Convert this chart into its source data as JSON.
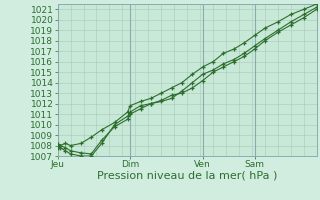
{
  "bg_color": "#d0ede0",
  "plot_bg": "#c8e8d8",
  "grid_color": "#a8c8b8",
  "line_color": "#2d6e2d",
  "xlabel": "Pression niveau de la mer( hPa )",
  "xlabel_fontsize": 8,
  "tick_fontsize": 6.5,
  "ylim": [
    1007,
    1021.5
  ],
  "yticks": [
    1007,
    1008,
    1009,
    1010,
    1011,
    1012,
    1013,
    1014,
    1015,
    1016,
    1017,
    1018,
    1019,
    1020,
    1021
  ],
  "xtick_labels": [
    "Jeu",
    "Dim",
    "Ven",
    "Sam"
  ],
  "xtick_positions": [
    0.0,
    0.28,
    0.56,
    0.76
  ],
  "xlim": [
    0.0,
    1.0
  ],
  "series_x": [
    [
      0.0,
      0.01,
      0.03,
      0.05,
      0.09,
      0.13,
      0.17,
      0.22,
      0.27,
      0.28,
      0.32,
      0.36,
      0.4,
      0.44,
      0.48,
      0.52,
      0.56,
      0.6,
      0.64,
      0.68,
      0.72,
      0.76,
      0.8,
      0.85,
      0.9,
      0.95,
      1.0
    ],
    [
      0.0,
      0.01,
      0.03,
      0.05,
      0.09,
      0.13,
      0.17,
      0.22,
      0.27,
      0.28,
      0.32,
      0.36,
      0.4,
      0.44,
      0.48,
      0.52,
      0.56,
      0.6,
      0.64,
      0.68,
      0.72,
      0.76,
      0.8,
      0.85,
      0.9,
      0.95,
      1.0
    ],
    [
      0.0,
      0.01,
      0.03,
      0.05,
      0.09,
      0.13,
      0.17,
      0.22,
      0.27,
      0.28,
      0.32,
      0.36,
      0.4,
      0.44,
      0.48,
      0.52,
      0.56,
      0.6,
      0.64,
      0.68,
      0.72,
      0.76,
      0.8,
      0.85,
      0.9,
      0.95,
      1.0
    ]
  ],
  "series_y": [
    [
      1008.0,
      1007.8,
      1007.5,
      1007.2,
      1007.0,
      1007.0,
      1008.2,
      1010.0,
      1010.8,
      1011.0,
      1011.5,
      1012.0,
      1012.2,
      1012.5,
      1013.2,
      1014.0,
      1014.8,
      1015.2,
      1015.8,
      1016.2,
      1016.8,
      1017.5,
      1018.2,
      1019.0,
      1019.8,
      1020.5,
      1021.2
    ],
    [
      1008.1,
      1008.0,
      1007.8,
      1007.5,
      1007.3,
      1007.2,
      1008.5,
      1009.8,
      1010.5,
      1011.2,
      1011.8,
      1012.0,
      1012.3,
      1012.8,
      1013.0,
      1013.5,
      1014.2,
      1015.0,
      1015.5,
      1016.0,
      1016.5,
      1017.2,
      1018.0,
      1018.8,
      1019.5,
      1020.2,
      1021.0
    ],
    [
      1007.8,
      1008.0,
      1008.2,
      1008.0,
      1008.2,
      1008.8,
      1009.5,
      1010.2,
      1011.2,
      1011.8,
      1012.2,
      1012.5,
      1013.0,
      1013.5,
      1014.0,
      1014.8,
      1015.5,
      1016.0,
      1016.8,
      1017.2,
      1017.8,
      1018.5,
      1019.2,
      1019.8,
      1020.5,
      1021.0,
      1021.5
    ]
  ]
}
